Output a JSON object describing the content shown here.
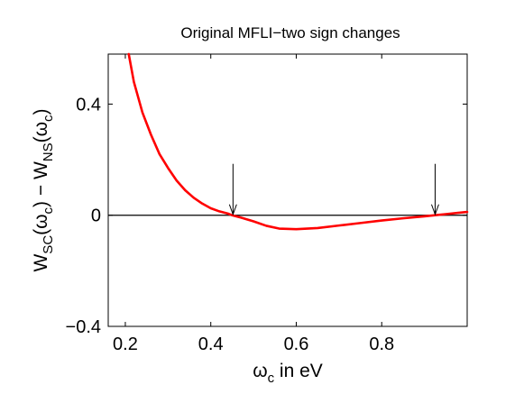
{
  "chart_data": {
    "type": "line",
    "title": "Original MFLI−two sign changes",
    "xlabel": {
      "main": "ω",
      "sub": "c",
      "rest": " in eV"
    },
    "ylabel": {
      "parts": [
        {
          "t": "W",
          "sub": false
        },
        {
          "t": "SC",
          "sub": true
        },
        {
          "t": "(ω",
          "sub": false
        },
        {
          "t": "c",
          "sub": true
        },
        {
          "t": ") − W",
          "sub": false
        },
        {
          "t": "NS",
          "sub": true
        },
        {
          "t": "(ω",
          "sub": false
        },
        {
          "t": "c",
          "sub": true
        },
        {
          "t": ")",
          "sub": false
        }
      ]
    },
    "xlim": [
      0.16,
      1.0
    ],
    "ylim": [
      -0.4,
      0.58
    ],
    "xticks": [
      0.2,
      0.4,
      0.6,
      0.8
    ],
    "xtick_labels": [
      "0.2",
      "0.4",
      "0.6",
      "0.8"
    ],
    "yticks": [
      -0.4,
      0,
      0.4
    ],
    "ytick_labels": [
      "−0.4",
      "0",
      "0.4"
    ],
    "grid": false,
    "zero_line": {
      "y": 0,
      "color": "#000000"
    },
    "series": [
      {
        "color": "#ff0000",
        "x": [
          0.208,
          0.22,
          0.24,
          0.26,
          0.28,
          0.3,
          0.32,
          0.34,
          0.36,
          0.38,
          0.4,
          0.42,
          0.44,
          0.45,
          0.47,
          0.5,
          0.53,
          0.56,
          0.6,
          0.65,
          0.7,
          0.75,
          0.8,
          0.85,
          0.9,
          0.925,
          0.95,
          1.0
        ],
        "y": [
          0.58,
          0.48,
          0.37,
          0.29,
          0.22,
          0.17,
          0.125,
          0.09,
          0.063,
          0.042,
          0.025,
          0.014,
          0.006,
          0.0,
          -0.008,
          -0.022,
          -0.038,
          -0.048,
          -0.05,
          -0.046,
          -0.037,
          -0.028,
          -0.019,
          -0.011,
          -0.004,
          0.0,
          0.004,
          0.012
        ]
      }
    ],
    "annotations": [
      {
        "type": "arrow",
        "x": 0.452,
        "y_start": 0.185,
        "y_end": 0.0,
        "color": "#000000"
      },
      {
        "type": "arrow",
        "x": 0.925,
        "y_start": 0.185,
        "y_end": 0.0,
        "color": "#000000"
      }
    ]
  }
}
